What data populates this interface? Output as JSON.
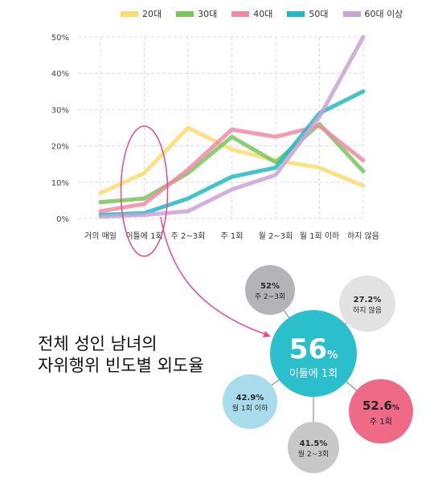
{
  "chart_data": {
    "type": "line",
    "categories": [
      "거의 매일",
      "이틀에 1회",
      "주 2~3회",
      "주 1회",
      "월 2~3회",
      "월 1회 이하",
      "하지 않음"
    ],
    "ylim": [
      0,
      50
    ],
    "yticks": [
      "0%",
      "10%",
      "20%",
      "30%",
      "40%",
      "50%"
    ],
    "grid": true,
    "legend_position": "top",
    "series": [
      {
        "name": "20대",
        "color": "#FADB6E",
        "values": [
          7,
          12.5,
          25,
          19,
          16,
          14,
          9
        ]
      },
      {
        "name": "30대",
        "color": "#79C55A",
        "values": [
          4.5,
          5.5,
          12.5,
          22.5,
          15.5,
          26,
          13
        ]
      },
      {
        "name": "40대",
        "color": "#F089A4",
        "values": [
          2,
          4,
          13.5,
          24.5,
          22.5,
          25.5,
          16
        ]
      },
      {
        "name": "50대",
        "color": "#22B9C6",
        "values": [
          1,
          1.5,
          5.5,
          11.5,
          14,
          29,
          35
        ]
      },
      {
        "name": "60대 이상",
        "color": "#C9A3D3",
        "values": [
          0.5,
          1,
          2,
          8,
          12,
          28,
          50
        ]
      }
    ]
  },
  "title": {
    "line1": "전체 성인 남녀의",
    "line2": "자위행위 빈도별 외도율"
  },
  "bubbles": {
    "center": {
      "pct": "56",
      "unit": "%",
      "label": "이틀에 1회",
      "color": "#2BBFCC"
    },
    "items": [
      {
        "pct": "52%",
        "label": "주 2~3회",
        "color": "#B4B4B8",
        "text_color": "#2a2a2a"
      },
      {
        "pct": "27.2%",
        "label": "하지 않음",
        "color": "#E2E2E2",
        "text_color": "#2a2a2a"
      },
      {
        "pct": "52.6",
        "unit": "%",
        "label": "주 1회",
        "color": "#EF6A86",
        "text_color": "#222"
      },
      {
        "pct": "41.5%",
        "label": "월 2~3회",
        "color": "#C8C8C8",
        "text_color": "#2a2a2a"
      },
      {
        "pct": "42.9%",
        "label": "월 1회 이하",
        "color": "#A8DCEC",
        "text_color": "#2a2a2a"
      }
    ]
  },
  "highlight_color": "#E8498F"
}
